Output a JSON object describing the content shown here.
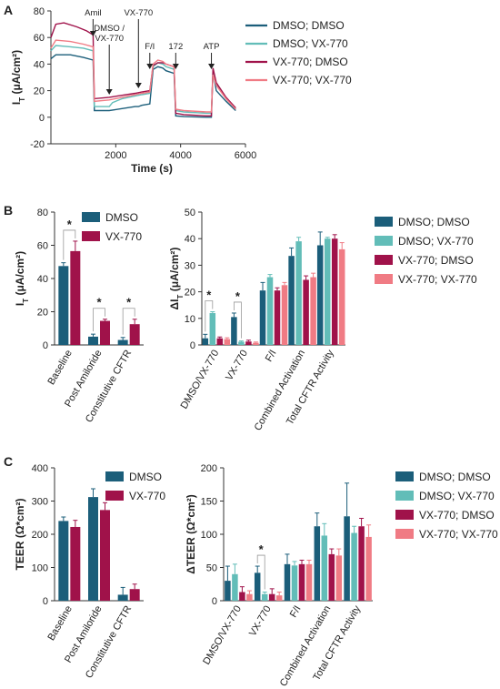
{
  "colors": {
    "dmso_dmso": "#1b5e7a",
    "dmso_vx": "#62bdb8",
    "vx_dmso": "#a0124a",
    "vx_vx": "#f07b84"
  },
  "panels": {
    "a": "A",
    "b": "B",
    "c": "C"
  },
  "chart_data": [
    {
      "type": "line",
      "ylabel": "I_T (μA/cm²)",
      "ylabel_main": "I",
      "ylabel_sub": "T",
      "ylabel_rest": " (μA/cm²)",
      "xlabel": "Time (s)",
      "xlim": [
        0,
        6000
      ],
      "ylim": [
        -20,
        80
      ],
      "xticks": [
        "2000",
        "4000",
        "6000"
      ],
      "yticks": [
        "-20",
        "0",
        "20",
        "40",
        "60",
        "80"
      ],
      "legend_position": "right",
      "annotations": [
        {
          "text": "Amil",
          "x": 1300
        },
        {
          "text": "DMSO /",
          "text2": "VX-770",
          "x": 1800
        },
        {
          "text": "VX-770",
          "x": 2700
        },
        {
          "text": "F/I",
          "x": 3050
        },
        {
          "text": "172",
          "x": 3850
        },
        {
          "text": "ATP",
          "x": 4950
        }
      ],
      "series": [
        {
          "name": "DMSO; DMSO",
          "color_key": "dmso_dmso",
          "points": [
            [
              0,
              44
            ],
            [
              150,
              47
            ],
            [
              600,
              47
            ],
            [
              1000,
              45
            ],
            [
              1300,
              43
            ],
            [
              1340,
              5
            ],
            [
              1800,
              5
            ],
            [
              2600,
              8
            ],
            [
              2700,
              8
            ],
            [
              2800,
              9
            ],
            [
              3050,
              10
            ],
            [
              3150,
              36
            ],
            [
              3300,
              38
            ],
            [
              3450,
              37
            ],
            [
              3550,
              35
            ],
            [
              3800,
              33
            ],
            [
              3850,
              1
            ],
            [
              4100,
              0.5
            ],
            [
              4800,
              0
            ],
            [
              4950,
              0
            ],
            [
              5000,
              35
            ],
            [
              5100,
              20
            ],
            [
              5400,
              12
            ],
            [
              5700,
              5
            ]
          ]
        },
        {
          "name": "DMSO; VX-770",
          "color_key": "dmso_vx",
          "points": [
            [
              0,
              50
            ],
            [
              150,
              54
            ],
            [
              600,
              53
            ],
            [
              1000,
              52
            ],
            [
              1300,
              50
            ],
            [
              1340,
              8
            ],
            [
              1800,
              8
            ],
            [
              1900,
              11
            ],
            [
              2200,
              14
            ],
            [
              2600,
              16
            ],
            [
              2800,
              17
            ],
            [
              3050,
              18
            ],
            [
              3150,
              38
            ],
            [
              3300,
              41
            ],
            [
              3450,
              40
            ],
            [
              3550,
              38
            ],
            [
              3800,
              36
            ],
            [
              3850,
              5
            ],
            [
              4100,
              4
            ],
            [
              4800,
              3
            ],
            [
              4950,
              3
            ],
            [
              5000,
              33
            ],
            [
              5100,
              25
            ],
            [
              5400,
              14
            ],
            [
              5700,
              6
            ]
          ]
        },
        {
          "name": "VX-770; DMSO",
          "color_key": "vx_dmso",
          "points": [
            [
              0,
              60
            ],
            [
              150,
              70
            ],
            [
              400,
              71
            ],
            [
              800,
              68
            ],
            [
              1100,
              65
            ],
            [
              1300,
              62
            ],
            [
              1340,
              14
            ],
            [
              1800,
              15
            ],
            [
              2600,
              18
            ],
            [
              2800,
              19
            ],
            [
              3050,
              20
            ],
            [
              3150,
              39
            ],
            [
              3300,
              41
            ],
            [
              3450,
              41
            ],
            [
              3550,
              40
            ],
            [
              3800,
              38
            ],
            [
              3850,
              3
            ],
            [
              4100,
              2
            ],
            [
              4800,
              1
            ],
            [
              4950,
              1
            ],
            [
              5000,
              37
            ],
            [
              5100,
              26
            ],
            [
              5400,
              15
            ],
            [
              5700,
              7
            ]
          ]
        },
        {
          "name": "VX-770; VX-770",
          "color_key": "vx_vx",
          "points": [
            [
              0,
              52
            ],
            [
              150,
              58
            ],
            [
              600,
              57
            ],
            [
              1000,
              55
            ],
            [
              1300,
              53
            ],
            [
              1340,
              12
            ],
            [
              1800,
              13
            ],
            [
              2600,
              17
            ],
            [
              2800,
              18
            ],
            [
              3050,
              19
            ],
            [
              3150,
              40
            ],
            [
              3300,
              43
            ],
            [
              3450,
              42
            ],
            [
              3550,
              40
            ],
            [
              3800,
              38
            ],
            [
              3850,
              6
            ],
            [
              4100,
              5
            ],
            [
              4800,
              4
            ],
            [
              4950,
              4
            ],
            [
              5000,
              32
            ],
            [
              5100,
              24
            ],
            [
              5400,
              14
            ],
            [
              5700,
              6
            ]
          ]
        }
      ]
    },
    {
      "type": "bar",
      "ylabel_main": "I",
      "ylabel_sub": "T",
      "ylabel_rest": " (μA/cm²)",
      "ylim": [
        0,
        80
      ],
      "yticks": [
        "0",
        "20",
        "40",
        "60",
        "80"
      ],
      "categories": [
        "Baseline",
        "Post Amiloride",
        "Constitutive CFTR"
      ],
      "legend_position": "inside-top-right",
      "series": [
        {
          "name": "DMSO",
          "color_key": "dmso_dmso",
          "values": [
            47.5,
            5.0,
            3.0
          ],
          "errors": [
            2.0,
            1.5,
            1.5
          ]
        },
        {
          "name": "VX-770",
          "color_key": "vx_dmso",
          "values": [
            56.5,
            14.5,
            12.5
          ],
          "errors": [
            6.0,
            1.0,
            3.0
          ]
        }
      ],
      "significance": [
        {
          "category": 0,
          "label": "*"
        },
        {
          "category": 1,
          "label": "*"
        },
        {
          "category": 2,
          "label": "*"
        }
      ]
    },
    {
      "type": "bar",
      "ylabel_main": "ΔI",
      "ylabel_sub": "T",
      "ylabel_rest": " (μA/cm²)",
      "ylim": [
        0,
        50
      ],
      "yticks": [
        "0",
        "10",
        "20",
        "30",
        "40",
        "50"
      ],
      "categories": [
        "DMSO/VX-770",
        "VX-770",
        "F/I",
        "Combined Activation",
        "Total CFTR Activity"
      ],
      "legend_position": "right",
      "series": [
        {
          "name": "DMSO; DMSO",
          "color_key": "dmso_dmso",
          "values": [
            2.5,
            10.5,
            20.5,
            33.5,
            37.5
          ],
          "errors": [
            1.5,
            1.5,
            3.0,
            3.0,
            5.0
          ]
        },
        {
          "name": "DMSO; VX-770",
          "color_key": "dmso_vx",
          "values": [
            12.0,
            1.2,
            25.5,
            39.0,
            40.0
          ],
          "errors": [
            0.5,
            0.3,
            1.0,
            1.5,
            0.5
          ]
        },
        {
          "name": "VX-770; DMSO",
          "color_key": "vx_dmso",
          "values": [
            2.5,
            1.3,
            20.5,
            24.5,
            40.0
          ],
          "errors": [
            0.5,
            0.5,
            1.0,
            1.5,
            1.5
          ]
        },
        {
          "name": "VX-770; VX-770",
          "color_key": "vx_vx",
          "values": [
            2.2,
            0.8,
            22.5,
            25.5,
            36.0
          ],
          "errors": [
            0.5,
            0.3,
            1.0,
            1.5,
            2.5
          ]
        }
      ],
      "significance": [
        {
          "category": 0,
          "label": "*"
        },
        {
          "category": 1,
          "label": "*"
        }
      ]
    },
    {
      "type": "bar",
      "ylabel": "TEER (Ω*cm²)",
      "ylim": [
        0,
        400
      ],
      "yticks": [
        "0",
        "100",
        "200",
        "300",
        "400"
      ],
      "categories": [
        "Baseline",
        "Post Amiloride",
        "Constitutive CFTR"
      ],
      "legend_position": "inside-top-right",
      "series": [
        {
          "name": "DMSO",
          "color_key": "dmso_dmso",
          "values": [
            240,
            312,
            18
          ],
          "errors": [
            12,
            25,
            22
          ]
        },
        {
          "name": "VX-770",
          "color_key": "vx_dmso",
          "values": [
            222,
            273,
            35
          ],
          "errors": [
            20,
            22,
            15
          ]
        }
      ]
    },
    {
      "type": "bar",
      "ylabel": "ΔTEER (Ω*cm²)",
      "ylim": [
        0,
        200
      ],
      "yticks": [
        "0",
        "50",
        "100",
        "150",
        "200"
      ],
      "categories": [
        "DMSO/VX-770",
        "VX-770",
        "F/I",
        "Combined Activation",
        "Total CFTR Activity"
      ],
      "legend_position": "right",
      "series": [
        {
          "name": "DMSO; DMSO",
          "color_key": "dmso_dmso",
          "values": [
            30,
            42,
            55,
            112,
            127
          ],
          "errors": [
            22,
            10,
            15,
            20,
            50
          ]
        },
        {
          "name": "DMSO; VX-770",
          "color_key": "dmso_vx",
          "values": [
            40,
            10,
            53,
            98,
            102
          ],
          "errors": [
            15,
            3,
            6,
            18,
            10
          ]
        },
        {
          "name": "VX-770; DMSO",
          "color_key": "vx_dmso",
          "values": [
            13,
            10,
            55,
            70,
            112
          ],
          "errors": [
            8,
            8,
            6,
            8,
            12
          ]
        },
        {
          "name": "VX-770; VX-770",
          "color_key": "vx_vx",
          "values": [
            10,
            8,
            55,
            68,
            96
          ],
          "errors": [
            5,
            5,
            6,
            10,
            18
          ]
        }
      ],
      "significance": [
        {
          "category": 1,
          "label": "*"
        }
      ]
    }
  ]
}
